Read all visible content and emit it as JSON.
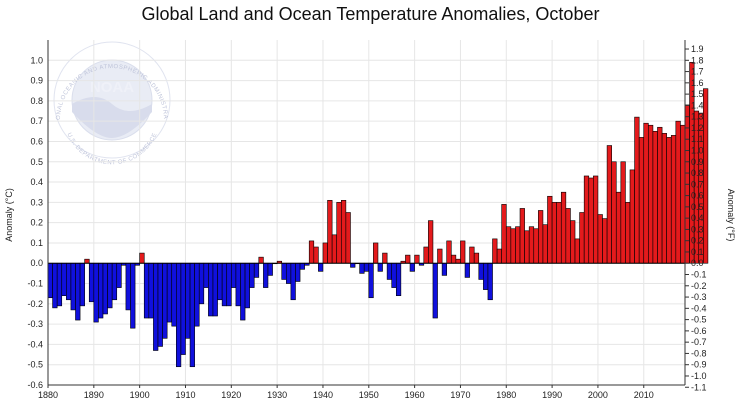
{
  "chart_data": {
    "type": "bar",
    "title": "Global Land and Ocean Temperature Anomalies, October",
    "ylabel_left": "Anomaly (°C)",
    "ylabel_right": "Anomaly (°F)",
    "xlabel": "",
    "xlim": [
      1880,
      2019
    ],
    "ylim_c": [
      -0.6,
      1.1
    ],
    "ylim_f": [
      -1.1,
      1.98
    ],
    "x_ticks": [
      "1880",
      "1890",
      "1900",
      "1910",
      "1920",
      "1930",
      "1940",
      "1950",
      "1960",
      "1970",
      "1980",
      "1990",
      "2000",
      "2010"
    ],
    "y_ticks_c": [
      "-0.6",
      "-0.5",
      "-0.4",
      "-0.3",
      "-0.2",
      "-0.1",
      "0.0",
      "0.1",
      "0.2",
      "0.3",
      "0.4",
      "0.5",
      "0.6",
      "0.7",
      "0.8",
      "0.9",
      "1.0"
    ],
    "y_ticks_f": [
      "-1.1",
      "-1.0",
      "-0.9",
      "-0.8",
      "-0.7",
      "-0.6",
      "-0.5",
      "-0.4",
      "-0.3",
      "-0.2",
      "-0.1",
      "0.0",
      "0.1",
      "0.2",
      "0.3",
      "0.4",
      "0.5",
      "0.6",
      "0.7",
      "0.8",
      "0.9",
      "1.0",
      "1.1",
      "1.2",
      "1.3",
      "1.4",
      "1.5",
      "1.6",
      "1.7",
      "1.8",
      "1.9"
    ],
    "positive_color": "#e41a1c",
    "negative_color": "#1010dd",
    "grid": true,
    "start_year": 1880,
    "values": [
      -0.17,
      -0.22,
      -0.21,
      -0.16,
      -0.18,
      -0.23,
      -0.28,
      -0.21,
      0.02,
      -0.19,
      -0.29,
      -0.27,
      -0.25,
      -0.22,
      -0.18,
      -0.12,
      -0.01,
      -0.23,
      -0.32,
      -0.01,
      0.05,
      -0.27,
      -0.27,
      -0.43,
      -0.41,
      -0.37,
      -0.29,
      -0.31,
      -0.51,
      -0.45,
      -0.37,
      -0.51,
      -0.31,
      -0.2,
      -0.12,
      -0.26,
      -0.26,
      -0.18,
      -0.21,
      -0.21,
      -0.12,
      -0.21,
      -0.28,
      -0.22,
      -0.12,
      -0.07,
      0.03,
      -0.12,
      -0.06,
      0.0,
      0.01,
      -0.08,
      -0.1,
      -0.18,
      -0.09,
      -0.03,
      -0.01,
      0.11,
      0.08,
      -0.04,
      0.1,
      0.31,
      0.14,
      0.3,
      0.31,
      0.25,
      -0.02,
      0.0,
      -0.05,
      -0.04,
      -0.17,
      0.1,
      -0.04,
      0.05,
      -0.08,
      -0.12,
      -0.16,
      0.01,
      0.04,
      -0.04,
      0.04,
      -0.01,
      0.08,
      0.21,
      -0.27,
      0.07,
      -0.06,
      0.11,
      0.04,
      0.02,
      0.11,
      -0.07,
      0.08,
      0.05,
      -0.08,
      -0.13,
      -0.18,
      0.12,
      0.07,
      0.29,
      0.18,
      0.17,
      0.18,
      0.27,
      0.16,
      0.18,
      0.17,
      0.26,
      0.19,
      0.33,
      0.3,
      0.3,
      0.35,
      0.27,
      0.21,
      0.12,
      0.25,
      0.43,
      0.42,
      0.43,
      0.24,
      0.22,
      0.58,
      0.5,
      0.35,
      0.5,
      0.3,
      0.46,
      0.72,
      0.62,
      0.69,
      0.68,
      0.65,
      0.67,
      0.64,
      0.62,
      0.63,
      0.7,
      0.68,
      0.78,
      0.99,
      0.75,
      0.74,
      0.86
    ]
  },
  "watermark": {
    "logo_word": "NOAA",
    "ring_top": "NATIONAL OCEANIC AND ATMOSPHERIC ADMINISTRATION",
    "ring_bottom": "U.S. DEPARTMENT OF COMMERCE"
  }
}
